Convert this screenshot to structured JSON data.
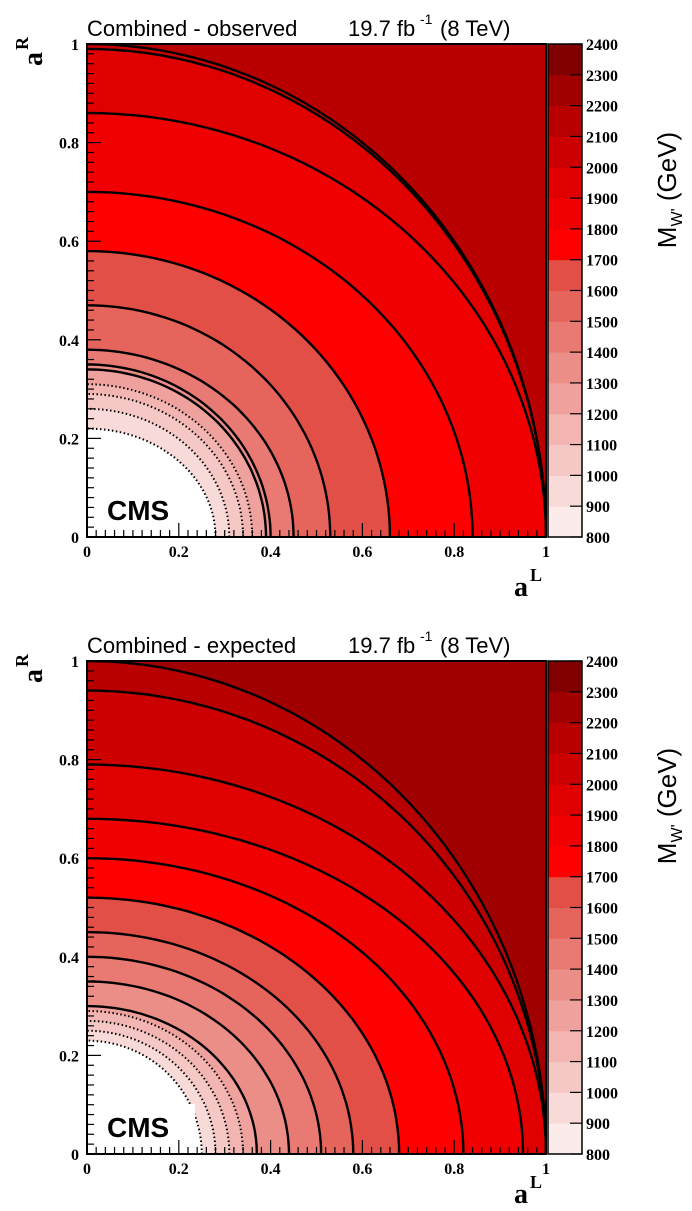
{
  "figure": {
    "panels": [
      {
        "id": "observed",
        "title": "Combined - observed",
        "lumi_value": "19.7 fb",
        "lumi_exponent": "-1",
        "energy": "(8 TeV)",
        "label": "CMS"
      },
      {
        "id": "expected",
        "title": "Combined - expected",
        "lumi_value": "19.7 fb",
        "lumi_exponent": "-1",
        "energy": "(8 TeV)",
        "label": "CMS"
      }
    ]
  },
  "chart_data": [
    {
      "type": "heatmap",
      "title": "Combined - observed  19.7 fb-1 (8 TeV)",
      "xlabel": "a^L",
      "ylabel": "a^R",
      "zlabel": "M_W' (GeV)",
      "xlim": [
        0,
        1
      ],
      "ylim": [
        0,
        1
      ],
      "zlim": [
        800,
        2400
      ],
      "x_ticks": [
        "0",
        "0.2",
        "0.4",
        "0.6",
        "0.8",
        "1"
      ],
      "y_ticks": [
        "0",
        "0.2",
        "0.4",
        "0.6",
        "0.8",
        "1"
      ],
      "z_ticks": [
        "800",
        "900",
        "1000",
        "1100",
        "1200",
        "1300",
        "1400",
        "1500",
        "1600",
        "1700",
        "1800",
        "1900",
        "2000",
        "2100",
        "2200",
        "2300",
        "2400"
      ],
      "levels": [
        800,
        900,
        1000,
        1100,
        1200,
        1300,
        1400,
        1500,
        1600,
        1700,
        1800,
        1900,
        2000,
        2100,
        2200,
        2300,
        2400
      ],
      "level_colors": [
        "#ffffff",
        "#fbeceb",
        "#f8dad8",
        "#f5c8c5",
        "#f2b5b1",
        "#efa29d",
        "#ec8e88",
        "#e97a73",
        "#e5655d",
        "#e24f46",
        "#ff0000",
        "#f00000",
        "#e00000",
        "#cc0000",
        "#b80000",
        "#a10000",
        "#800000"
      ],
      "contours": [
        {
          "mass": 900,
          "style": "dotted",
          "x": 0.28,
          "y": 0.22
        },
        {
          "mass": 1000,
          "style": "dotted",
          "x": 0.31,
          "y": 0.26
        },
        {
          "mass": 1100,
          "style": "dotted",
          "x": 0.34,
          "y": 0.29
        },
        {
          "mass": 1200,
          "style": "dotted",
          "x": 0.36,
          "y": 0.31
        },
        {
          "mass": 1300,
          "style": "solid",
          "x": 0.39,
          "y": 0.34
        },
        {
          "mass": 1400,
          "style": "solid",
          "x": 0.4,
          "y": 0.35
        },
        {
          "mass": 1500,
          "style": "solid",
          "x": 0.45,
          "y": 0.38
        },
        {
          "mass": 1600,
          "style": "solid",
          "x": 0.53,
          "y": 0.47
        },
        {
          "mass": 1700,
          "style": "solid",
          "x": 0.66,
          "y": 0.58
        },
        {
          "mass": 1800,
          "style": "solid",
          "x": 0.84,
          "y": 0.7
        },
        {
          "mass": 1900,
          "style": "solid",
          "x": 1.0,
          "y": 0.86
        },
        {
          "mass": 2000,
          "style": "solid",
          "x": 1.0,
          "y": 0.99
        },
        {
          "mass": 2100,
          "style": "solid",
          "x": 1.0,
          "y": 1.0
        }
      ]
    },
    {
      "type": "heatmap",
      "title": "Combined - expected  19.7 fb-1 (8 TeV)",
      "xlabel": "a^L",
      "ylabel": "a^R",
      "zlabel": "M_W' (GeV)",
      "xlim": [
        0,
        1
      ],
      "ylim": [
        0,
        1
      ],
      "zlim": [
        800,
        2400
      ],
      "x_ticks": [
        "0",
        "0.2",
        "0.4",
        "0.6",
        "0.8",
        "1"
      ],
      "y_ticks": [
        "0",
        "0.2",
        "0.4",
        "0.6",
        "0.8",
        "1"
      ],
      "z_ticks": [
        "800",
        "900",
        "1000",
        "1100",
        "1200",
        "1300",
        "1400",
        "1500",
        "1600",
        "1700",
        "1800",
        "1900",
        "2000",
        "2100",
        "2200",
        "2300",
        "2400"
      ],
      "levels": [
        800,
        900,
        1000,
        1100,
        1200,
        1300,
        1400,
        1500,
        1600,
        1700,
        1800,
        1900,
        2000,
        2100,
        2200,
        2300,
        2400
      ],
      "level_colors": [
        "#ffffff",
        "#fbeceb",
        "#f8dad8",
        "#f5c8c5",
        "#f2b5b1",
        "#efa29d",
        "#ec8e88",
        "#e97a73",
        "#e5655d",
        "#e24f46",
        "#ff0000",
        "#f00000",
        "#e00000",
        "#cc0000",
        "#b80000",
        "#a10000",
        "#800000"
      ],
      "contours": [
        {
          "mass": 900,
          "style": "dotted",
          "x": 0.25,
          "y": 0.23
        },
        {
          "mass": 1000,
          "style": "dotted",
          "x": 0.28,
          "y": 0.25
        },
        {
          "mass": 1100,
          "style": "dotted",
          "x": 0.31,
          "y": 0.27
        },
        {
          "mass": 1200,
          "style": "dotted",
          "x": 0.34,
          "y": 0.29
        },
        {
          "mass": 1300,
          "style": "solid",
          "x": 0.37,
          "y": 0.3
        },
        {
          "mass": 1400,
          "style": "solid",
          "x": 0.44,
          "y": 0.35
        },
        {
          "mass": 1500,
          "style": "solid",
          "x": 0.51,
          "y": 0.4
        },
        {
          "mass": 1600,
          "style": "solid",
          "x": 0.58,
          "y": 0.45
        },
        {
          "mass": 1700,
          "style": "solid",
          "x": 0.68,
          "y": 0.52
        },
        {
          "mass": 1800,
          "style": "solid",
          "x": 0.82,
          "y": 0.6
        },
        {
          "mass": 1900,
          "style": "solid",
          "x": 0.95,
          "y": 0.68
        },
        {
          "mass": 2000,
          "style": "solid",
          "x": 1.0,
          "y": 0.79
        },
        {
          "mass": 2100,
          "style": "solid",
          "x": 1.0,
          "y": 0.94
        },
        {
          "mass": 2200,
          "style": "solid",
          "x": 1.0,
          "y": 1.0
        }
      ]
    }
  ]
}
